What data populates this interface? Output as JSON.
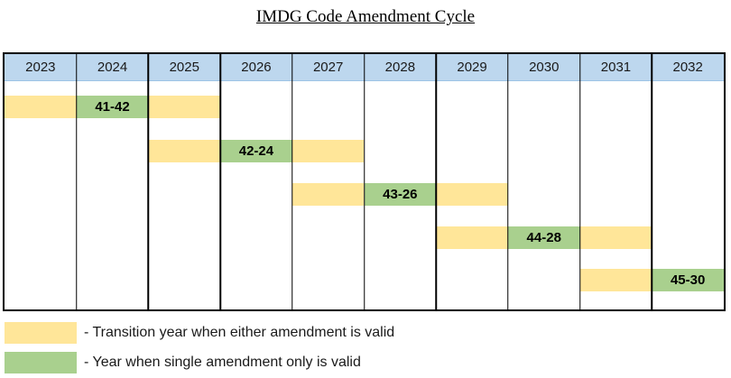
{
  "page": {
    "title": "IMDG Code Amendment Cycle"
  },
  "colors": {
    "header_fill": "#BDD7EE",
    "header_edge": "#9DC3E6",
    "transition_fill": "#FFE699",
    "single_fill": "#A9D08E",
    "grid_border": "#000000",
    "text": "#000000"
  },
  "chart_data": {
    "type": "table",
    "subtype": "gantt-cycle",
    "title": "IMDG Code Amendment Cycle",
    "columns": [
      "2023",
      "2024",
      "2025",
      "2026",
      "2027",
      "2028",
      "2029",
      "2030",
      "2031",
      "2032"
    ],
    "rows": [
      {
        "amendment_label": "41-42",
        "transition_years": [
          "2023",
          "2025"
        ],
        "single_amendment_year": "2024"
      },
      {
        "amendment_label": "42-24",
        "transition_years": [
          "2025",
          "2027"
        ],
        "single_amendment_year": "2026"
      },
      {
        "amendment_label": "43-26",
        "transition_years": [
          "2027",
          "2029"
        ],
        "single_amendment_year": "2028"
      },
      {
        "amendment_label": "44-28",
        "transition_years": [
          "2029",
          "2031"
        ],
        "single_amendment_year": "2030"
      },
      {
        "amendment_label": "45-30",
        "transition_years": [
          "2031"
        ],
        "single_amendment_year": "2032"
      }
    ],
    "legend": [
      {
        "swatch_color": "#FFE699",
        "label": "- Transition year when either amendment is valid"
      },
      {
        "swatch_color": "#A9D08E",
        "label": "- Year when single amendment only is valid"
      }
    ],
    "legend_position": "bottom-left",
    "grid": "vertical-lines-only"
  }
}
